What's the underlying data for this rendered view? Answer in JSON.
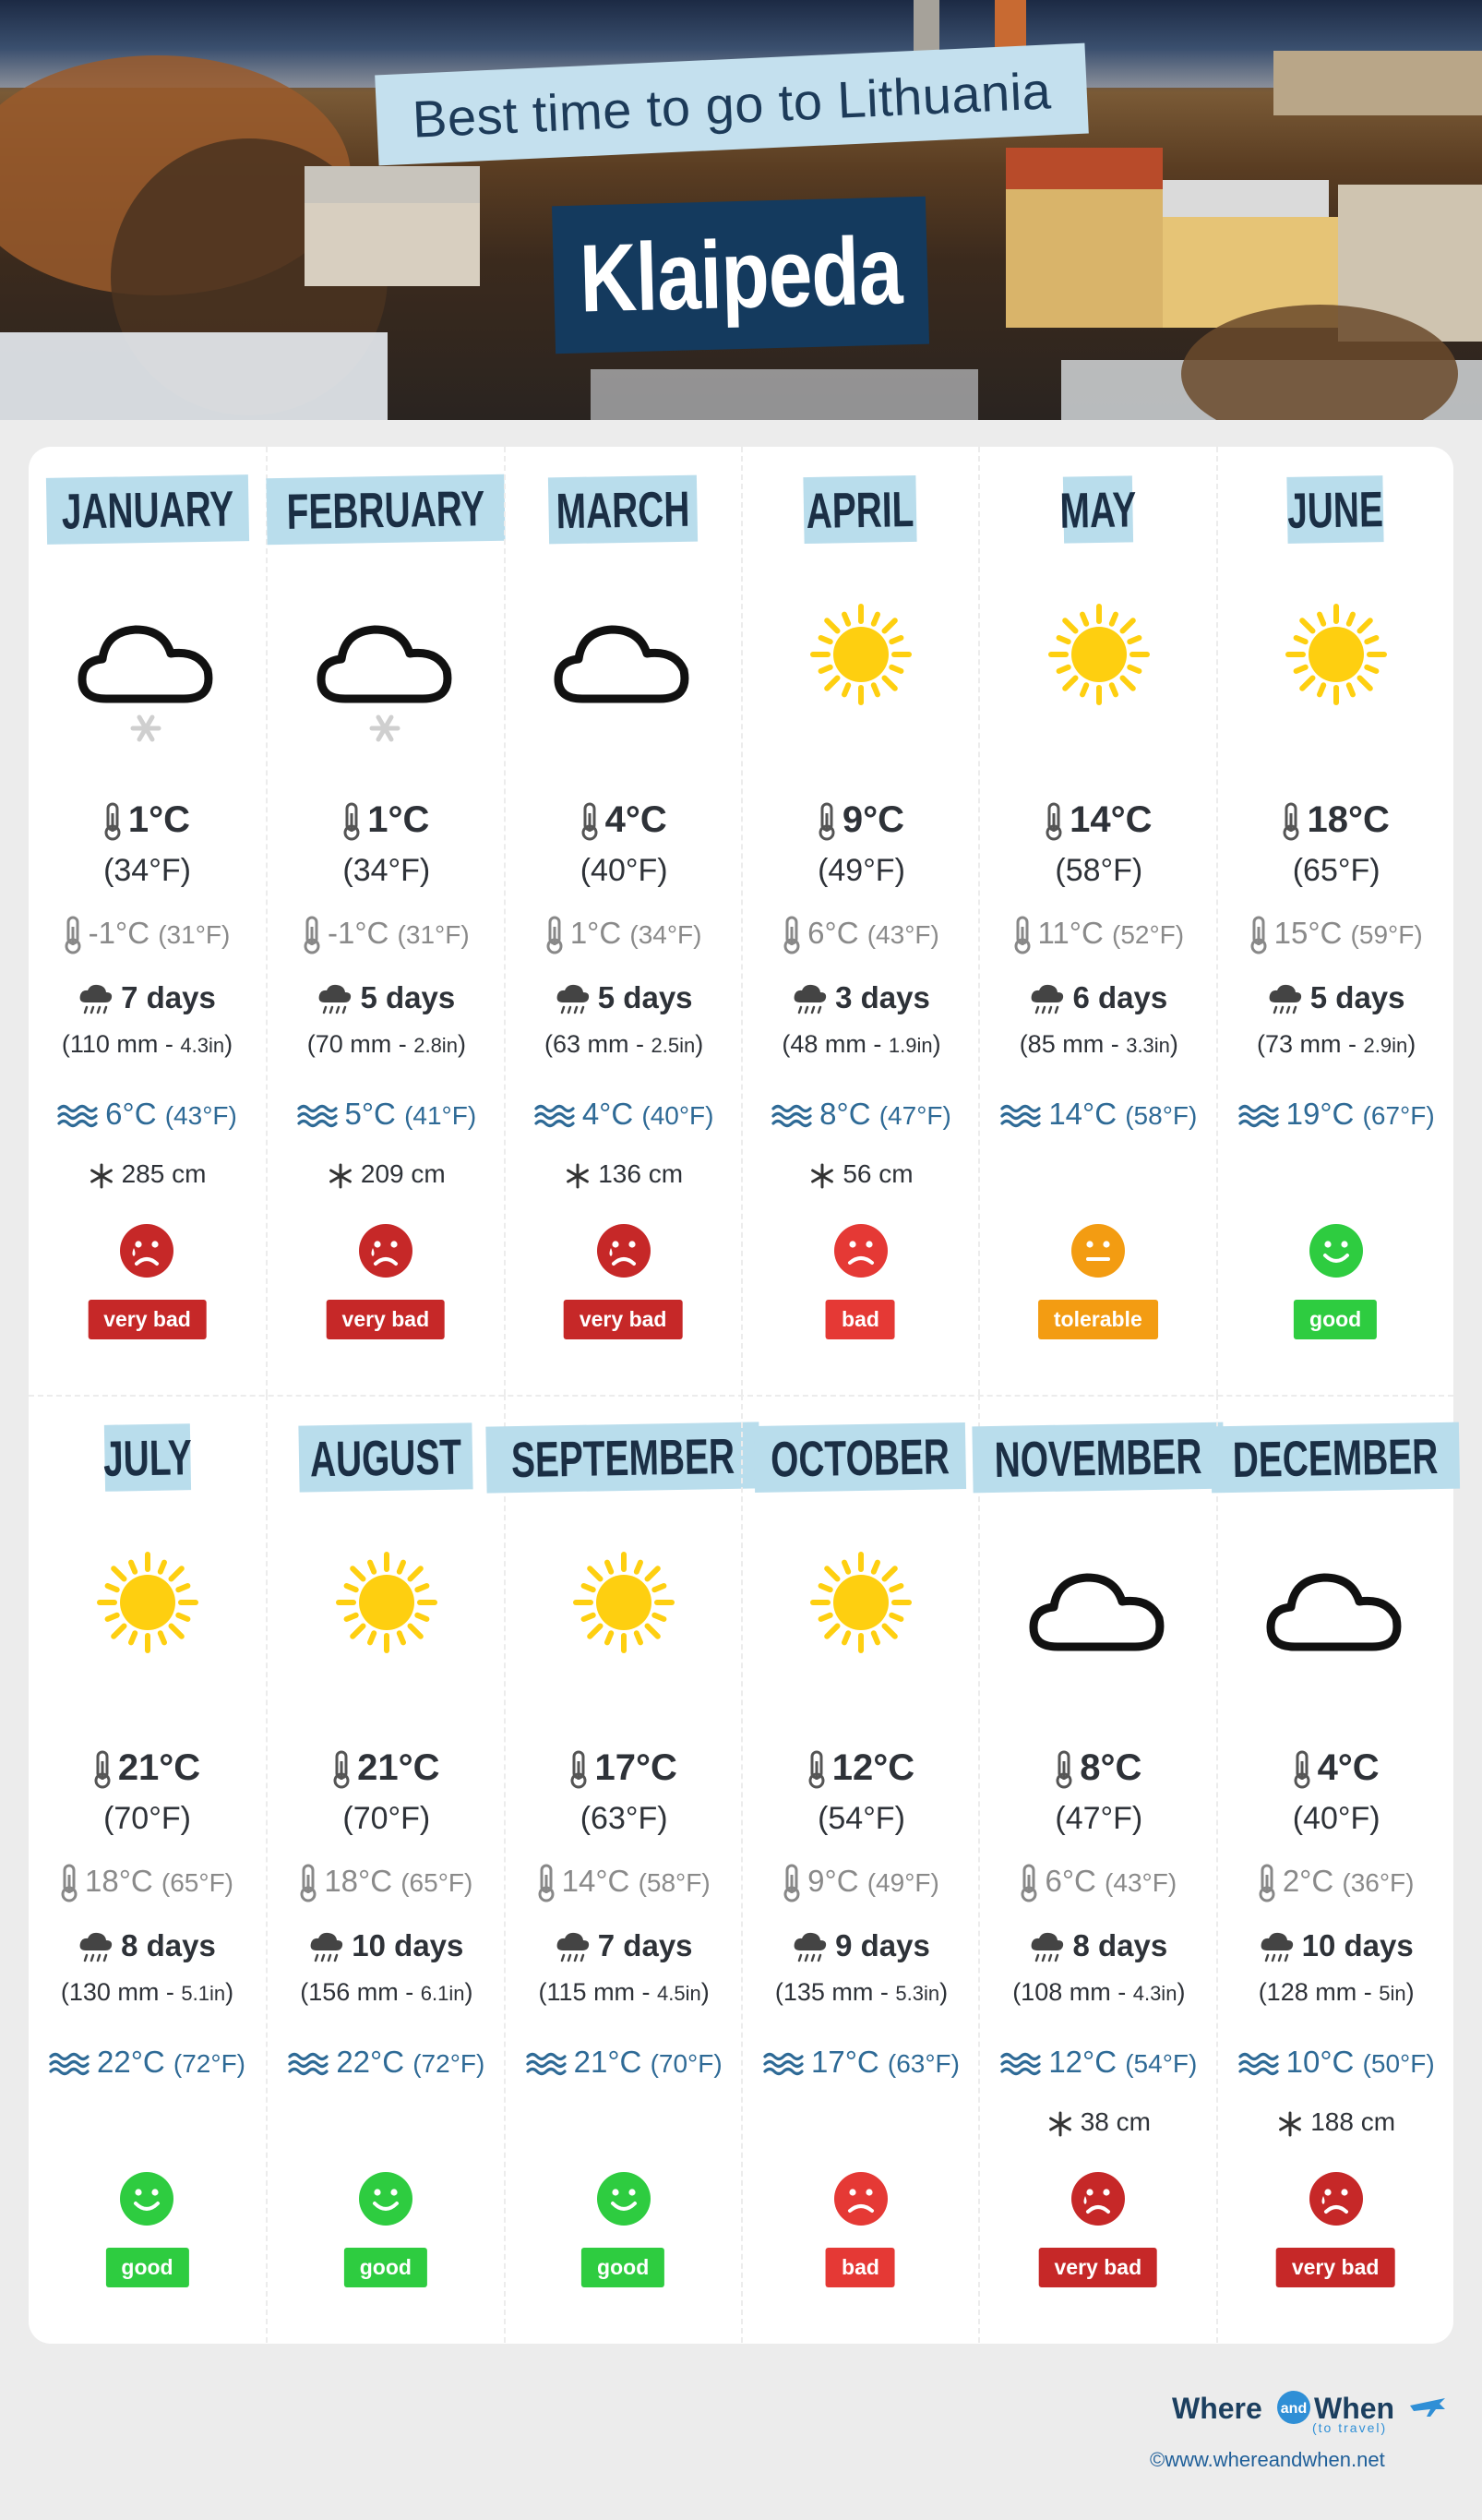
{
  "header": {
    "subtitle": "Best time to go to Lithuania",
    "city": "Klaipeda"
  },
  "colors": {
    "very_bad": "#c62828",
    "bad": "#e53935",
    "tolerable": "#f39c12",
    "good": "#2ecc40",
    "sea": "#2e6a96",
    "month_label_bg": "#b9ddec"
  },
  "months": [
    {
      "name": "JANUARY",
      "weather_icon": "cloud-snow-icon",
      "tmax": "1°C",
      "tmax_f": "(34°F)",
      "tmin": "-1°C",
      "tmin_f": "(31°F)",
      "rain_days": "7 days",
      "rain_mm": "(110 mm - ",
      "rain_in": "4.3in",
      "sea": "6°C",
      "sea_f": "(43°F)",
      "snow": "285 cm",
      "rating_icon": "crying-face-icon",
      "rating": "very bad"
    },
    {
      "name": "FEBRUARY",
      "weather_icon": "cloud-snow-icon",
      "tmax": "1°C",
      "tmax_f": "(34°F)",
      "tmin": "-1°C",
      "tmin_f": "(31°F)",
      "rain_days": "5 days",
      "rain_mm": "(70 mm - ",
      "rain_in": "2.8in",
      "sea": "5°C",
      "sea_f": "(41°F)",
      "snow": "209 cm",
      "rating_icon": "crying-face-icon",
      "rating": "very bad"
    },
    {
      "name": "MARCH",
      "weather_icon": "cloud-icon",
      "tmax": "4°C",
      "tmax_f": "(40°F)",
      "tmin": "1°C",
      "tmin_f": "(34°F)",
      "rain_days": "5 days",
      "rain_mm": "(63 mm - ",
      "rain_in": "2.5in",
      "sea": "4°C",
      "sea_f": "(40°F)",
      "snow": "136 cm",
      "rating_icon": "crying-face-icon",
      "rating": "very bad"
    },
    {
      "name": "APRIL",
      "weather_icon": "sun-icon",
      "tmax": "9°C",
      "tmax_f": "(49°F)",
      "tmin": "6°C",
      "tmin_f": "(43°F)",
      "rain_days": "3 days",
      "rain_mm": "(48 mm - ",
      "rain_in": "1.9in",
      "sea": "8°C",
      "sea_f": "(47°F)",
      "snow": "56 cm",
      "rating_icon": "sad-face-icon",
      "rating": "bad"
    },
    {
      "name": "MAY",
      "weather_icon": "sun-icon",
      "tmax": "14°C",
      "tmax_f": "(58°F)",
      "tmin": "11°C",
      "tmin_f": "(52°F)",
      "rain_days": "6 days",
      "rain_mm": "(85 mm - ",
      "rain_in": "3.3in",
      "sea": "14°C",
      "sea_f": "(58°F)",
      "snow": "",
      "rating_icon": "neutral-face-icon",
      "rating": "tolerable"
    },
    {
      "name": "JUNE",
      "weather_icon": "sun-icon",
      "tmax": "18°C",
      "tmax_f": "(65°F)",
      "tmin": "15°C",
      "tmin_f": "(59°F)",
      "rain_days": "5 days",
      "rain_mm": "(73 mm - ",
      "rain_in": "2.9in",
      "sea": "19°C",
      "sea_f": "(67°F)",
      "snow": "",
      "rating_icon": "smile-face-icon",
      "rating": "good"
    },
    {
      "name": "JULY",
      "weather_icon": "sun-icon",
      "tmax": "21°C",
      "tmax_f": "(70°F)",
      "tmin": "18°C",
      "tmin_f": "(65°F)",
      "rain_days": "8 days",
      "rain_mm": "(130 mm - ",
      "rain_in": "5.1in",
      "sea": "22°C",
      "sea_f": "(72°F)",
      "snow": "",
      "rating_icon": "smile-face-icon",
      "rating": "good"
    },
    {
      "name": "AUGUST",
      "weather_icon": "sun-icon",
      "tmax": "21°C",
      "tmax_f": "(70°F)",
      "tmin": "18°C",
      "tmin_f": "(65°F)",
      "rain_days": "10 days",
      "rain_mm": "(156 mm - ",
      "rain_in": "6.1in",
      "sea": "22°C",
      "sea_f": "(72°F)",
      "snow": "",
      "rating_icon": "smile-face-icon",
      "rating": "good"
    },
    {
      "name": "SEPTEMBER",
      "weather_icon": "sun-icon",
      "tmax": "17°C",
      "tmax_f": "(63°F)",
      "tmin": "14°C",
      "tmin_f": "(58°F)",
      "rain_days": "7 days",
      "rain_mm": "(115 mm - ",
      "rain_in": "4.5in",
      "sea": "21°C",
      "sea_f": "(70°F)",
      "snow": "",
      "rating_icon": "smile-face-icon",
      "rating": "good"
    },
    {
      "name": "OCTOBER",
      "weather_icon": "sun-icon",
      "tmax": "12°C",
      "tmax_f": "(54°F)",
      "tmin": "9°C",
      "tmin_f": "(49°F)",
      "rain_days": "9 days",
      "rain_mm": "(135 mm - ",
      "rain_in": "5.3in",
      "sea": "17°C",
      "sea_f": "(63°F)",
      "snow": "",
      "rating_icon": "sad-face-icon",
      "rating": "bad"
    },
    {
      "name": "NOVEMBER",
      "weather_icon": "cloud-icon",
      "tmax": "8°C",
      "tmax_f": "(47°F)",
      "tmin": "6°C",
      "tmin_f": "(43°F)",
      "rain_days": "8 days",
      "rain_mm": "(108 mm - ",
      "rain_in": "4.3in",
      "sea": "12°C",
      "sea_f": "(54°F)",
      "snow": "38 cm",
      "rating_icon": "crying-face-icon",
      "rating": "very bad"
    },
    {
      "name": "DECEMBER",
      "weather_icon": "cloud-icon",
      "tmax": "4°C",
      "tmax_f": "(40°F)",
      "tmin": "2°C",
      "tmin_f": "(36°F)",
      "rain_days": "10 days",
      "rain_mm": "(128 mm - ",
      "rain_in": "5in",
      "sea": "10°C",
      "sea_f": "(50°F)",
      "snow": "188 cm",
      "rating_icon": "crying-face-icon",
      "rating": "very bad"
    }
  ],
  "footer": {
    "logo_word1": "Where",
    "logo_and": "and",
    "logo_word2": "When",
    "logo_sub": "(to travel)",
    "url": "©www.whereandwhen.net"
  }
}
